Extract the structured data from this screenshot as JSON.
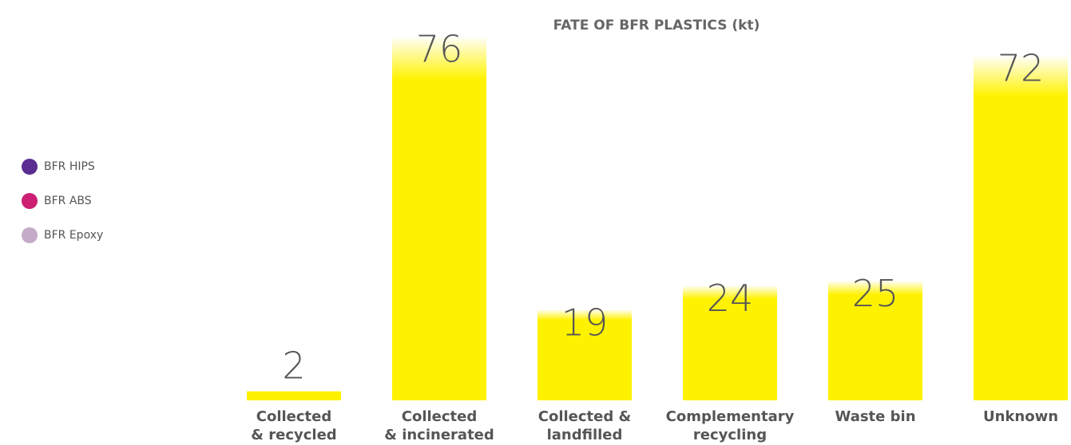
{
  "chart_data": {
    "type": "bar",
    "title": "FATE OF BFR PLASTICS (kt)",
    "categories": [
      [
        "Collected",
        "& recycled"
      ],
      [
        "Collected",
        "& incinerated"
      ],
      [
        "Collected &",
        "landfilled"
      ],
      [
        "Complementary",
        "recycling"
      ],
      [
        "Waste bin"
      ],
      [
        "Unknown"
      ]
    ],
    "values": [
      2,
      76,
      19,
      24,
      25,
      72
    ],
    "color": "#fff200",
    "legend": [
      {
        "name": "BFR HIPS",
        "color": "#5b2c91"
      },
      {
        "name": "BFR ABS",
        "color": "#cc1f73"
      },
      {
        "name": "BFR Epoxy",
        "color": "#c4acc8"
      }
    ]
  }
}
